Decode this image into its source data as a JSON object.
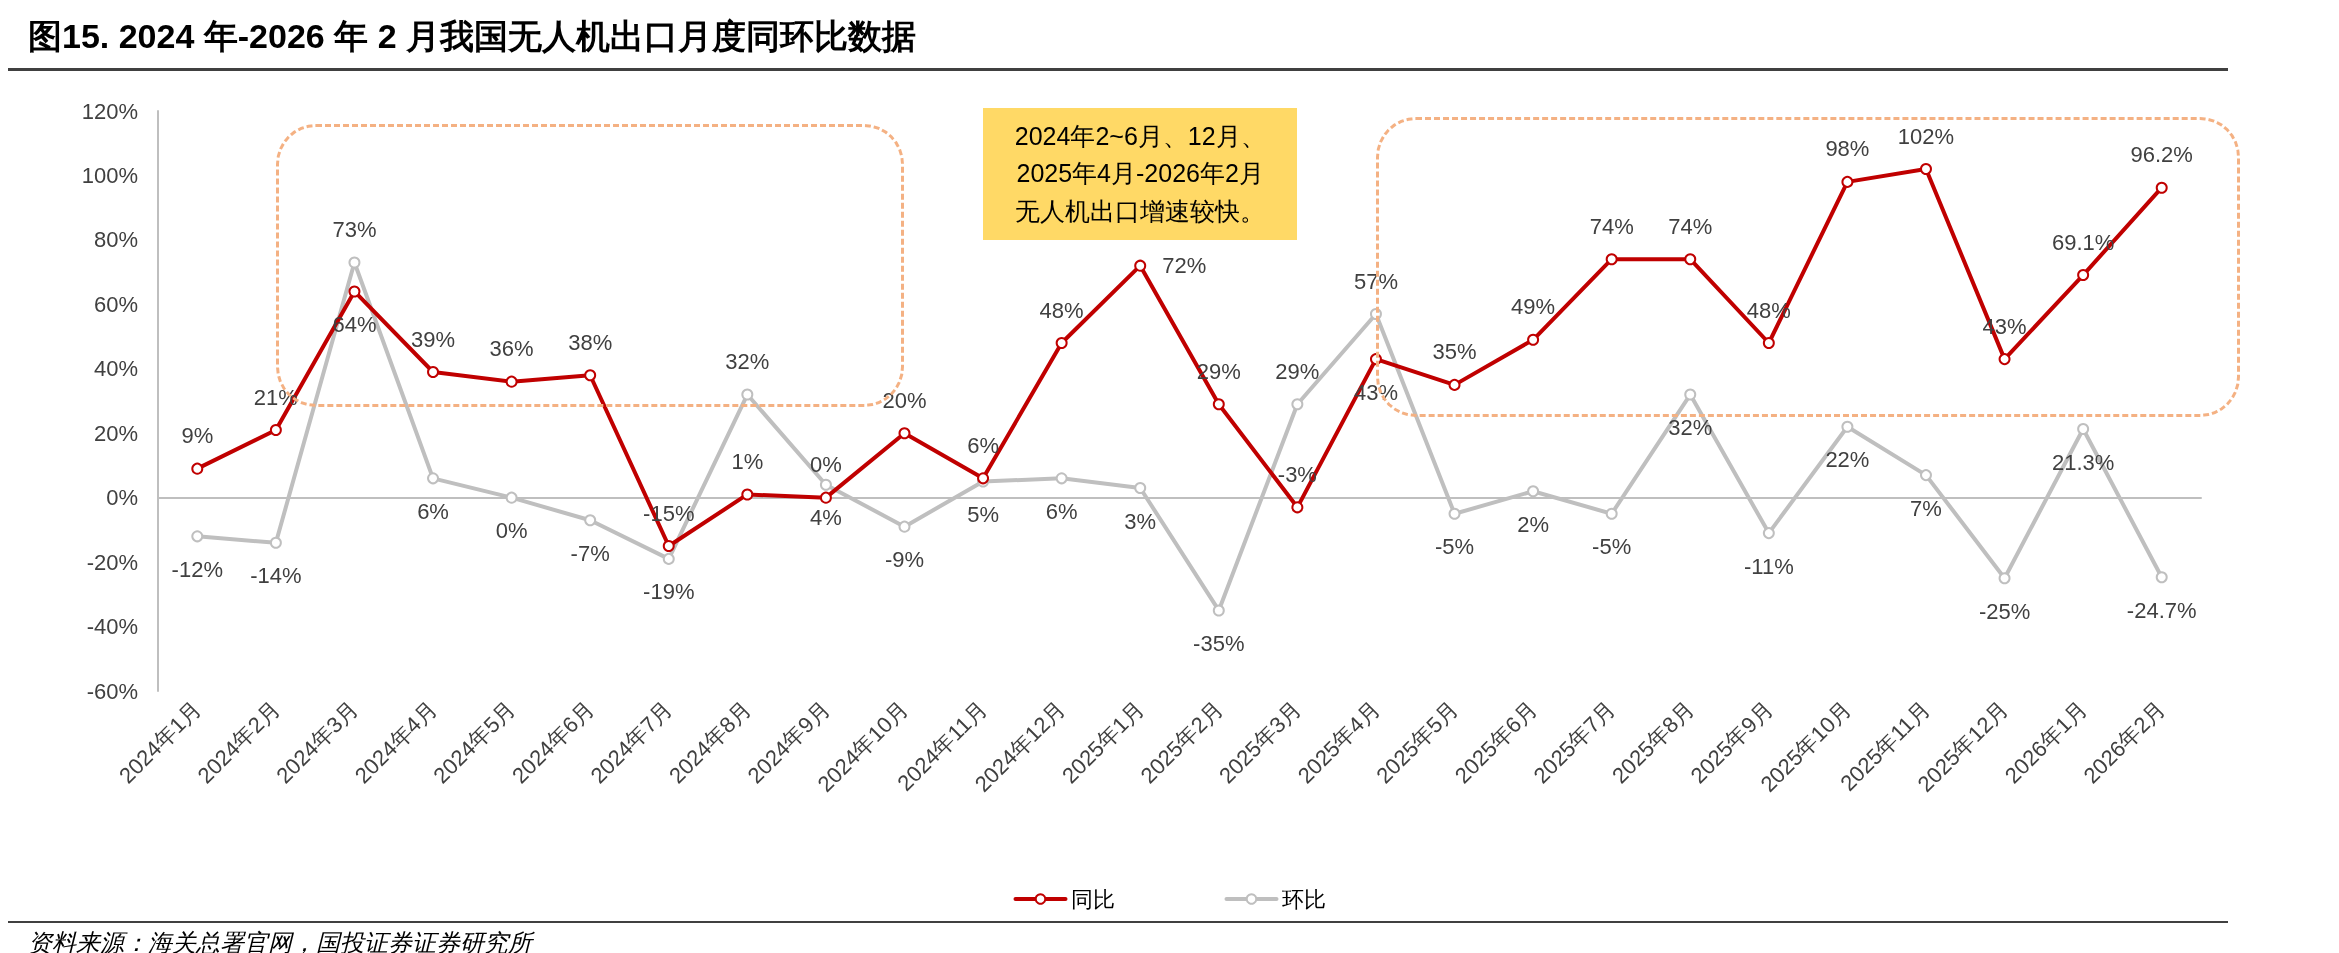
{
  "chart_data": {
    "type": "line",
    "title": "图15. 2024 年-2026 年 2 月我国无人机出口月度同环比数据",
    "categories": [
      "2024年1月",
      "2024年2月",
      "2024年3月",
      "2024年4月",
      "2024年5月",
      "2024年6月",
      "2024年7月",
      "2024年8月",
      "2024年9月",
      "2024年10月",
      "2024年11月",
      "2024年12月",
      "2025年1月",
      "2025年2月",
      "2025年3月",
      "2025年4月",
      "2025年5月",
      "2025年6月",
      "2025年7月",
      "2025年8月",
      "2025年9月",
      "2025年10月",
      "2025年11月",
      "2025年12月",
      "2026年1月",
      "2026年2月"
    ],
    "series": [
      {
        "name": "同比",
        "color": "#c00000",
        "values": [
          9,
          21,
          64,
          39,
          36,
          38,
          -15,
          1,
          0,
          20,
          6,
          48,
          72,
          29,
          -3,
          43,
          35,
          49,
          74,
          74,
          48,
          98,
          102,
          43,
          69.1,
          96.2
        ],
        "value_labels": [
          "9%",
          "21%",
          "64%",
          "39%",
          "36%",
          "38%",
          "-15%",
          "1%",
          "0%",
          "20%",
          "6%",
          "48%",
          "72%",
          "29%",
          "-3%",
          "43%",
          "35%",
          "49%",
          "74%",
          "74%",
          "48%",
          "98%",
          "102%",
          "43%",
          "69.1%",
          "96.2%"
        ]
      },
      {
        "name": "环比",
        "color": "#bfbfbf",
        "values": [
          -12,
          -14,
          73,
          6,
          0,
          -7,
          -19,
          32,
          4,
          -9,
          5,
          6,
          3,
          -35,
          29,
          57,
          -5,
          2,
          -5,
          32,
          -11,
          22,
          7,
          -25,
          21.3,
          -24.7
        ],
        "value_labels": [
          "-12%",
          "-14%",
          "73%",
          "6%",
          "0%",
          "-7%",
          "-19%",
          "32%",
          "4%",
          "-9%",
          "5%",
          "6%",
          "3%",
          "-35%",
          "29%",
          "57%",
          "-5%",
          "2%",
          "-5%",
          "32%",
          "-11%",
          "22%",
          "7%",
          "-25%",
          "21.3%",
          "-24.7%"
        ]
      }
    ],
    "ylim": [
      -60,
      120
    ],
    "yticks": [
      {
        "value": -60,
        "label": "-60%"
      },
      {
        "value": -40,
        "label": "-40%"
      },
      {
        "value": -20,
        "label": "-20%"
      },
      {
        "value": 0,
        "label": "0%"
      },
      {
        "value": 20,
        "label": "20%"
      },
      {
        "value": 40,
        "label": "40%"
      },
      {
        "value": 60,
        "label": "60%"
      },
      {
        "value": 80,
        "label": "80%"
      },
      {
        "value": 100,
        "label": "100%"
      },
      {
        "value": 120,
        "label": "120%"
      }
    ],
    "marker": "circle",
    "line_style": "solid",
    "legend": "bottom",
    "annotations": [
      "2024年2~6月、12月、",
      "2025年4月-2026年2月",
      "无人机出口增速较快。",
      "资料来源：海关总署官网，国投证券证券研究所"
    ]
  }
}
